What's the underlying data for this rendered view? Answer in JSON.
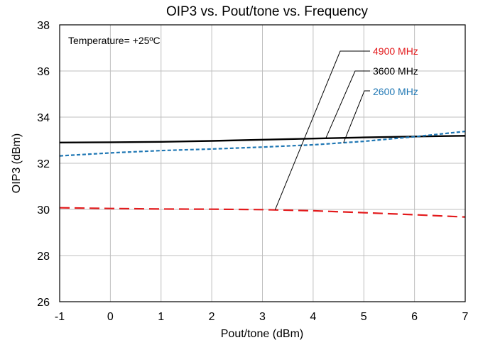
{
  "chart_data": {
    "type": "line",
    "title": "OIP3 vs. Pout/tone vs. Frequency",
    "xlabel": "Pout/tone (dBm)",
    "ylabel": "OIP3 (dBm)",
    "xlim": [
      -1,
      7
    ],
    "ylim": [
      26,
      38
    ],
    "x_ticks": [
      "-1",
      "0",
      "1",
      "2",
      "3",
      "4",
      "5",
      "6",
      "7"
    ],
    "y_ticks": [
      "26",
      "28",
      "30",
      "32",
      "34",
      "36",
      "38"
    ],
    "grid": true,
    "annotation": "Temperature= +25ºC",
    "series": [
      {
        "name": "4900 MHz",
        "color": "#e31a1c",
        "style": "long-dash",
        "x": [
          -1,
          0,
          1,
          2,
          3,
          4,
          5,
          6,
          7
        ],
        "y": [
          30.07,
          30.04,
          30.02,
          30.01,
          29.99,
          29.94,
          29.86,
          29.77,
          29.67
        ]
      },
      {
        "name": "3600 MHz",
        "color": "#000000",
        "style": "solid",
        "x": [
          -1,
          0,
          1,
          2,
          3,
          4,
          5,
          6,
          7
        ],
        "y": [
          32.9,
          32.91,
          32.93,
          32.97,
          33.02,
          33.07,
          33.12,
          33.16,
          33.19
        ]
      },
      {
        "name": "2600 MHz",
        "color": "#1f77b4",
        "style": "dotted",
        "x": [
          -1,
          0,
          1,
          2,
          3,
          4,
          5,
          6,
          7
        ],
        "y": [
          32.32,
          32.45,
          32.55,
          32.62,
          32.7,
          32.8,
          32.95,
          33.15,
          33.38
        ]
      }
    ]
  }
}
